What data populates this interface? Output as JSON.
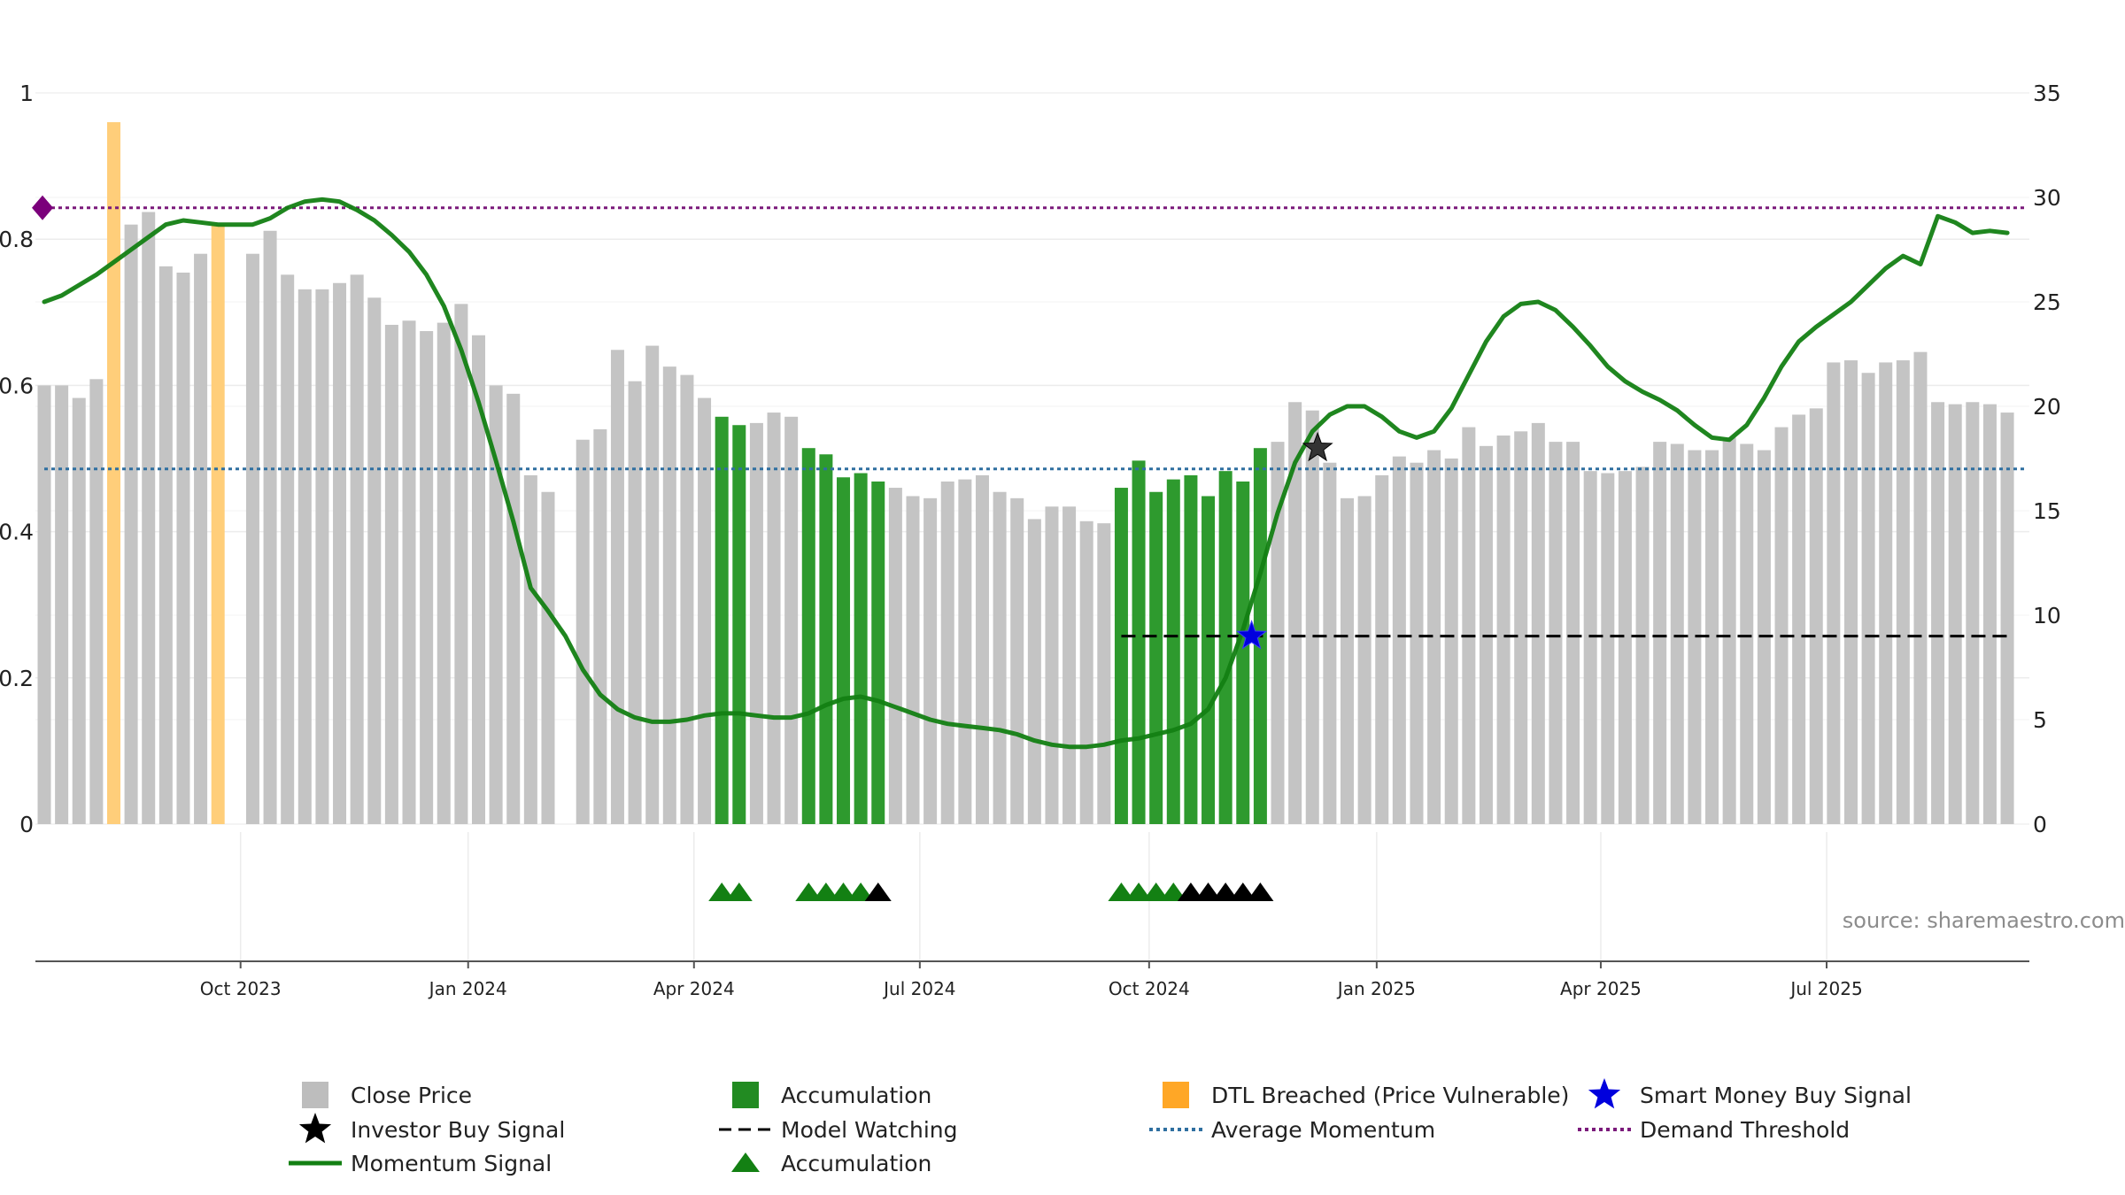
{
  "chart_data": {
    "type": "bar",
    "y_left_ticks": [
      "0",
      "0.2",
      "0.4",
      "0.6",
      "0.8",
      "1"
    ],
    "y_left_range": [
      0,
      1
    ],
    "y_right_ticks": [
      "0",
      "5",
      "10",
      "15",
      "20",
      "25",
      "30",
      "35"
    ],
    "y_right_range": [
      0,
      35
    ],
    "x_ticks": [
      {
        "label": "Oct 2023",
        "week": 11.3
      },
      {
        "label": "Jan 2024",
        "week": 24.4
      },
      {
        "label": "Apr 2024",
        "week": 37.4
      },
      {
        "label": "Jul 2024",
        "week": 50.4
      },
      {
        "label": "Oct 2024",
        "week": 63.6
      },
      {
        "label": "Jan 2025",
        "week": 76.7
      },
      {
        "label": "Apr 2025",
        "week": 89.6
      },
      {
        "label": "Jul 2025",
        "week": 102.6
      }
    ],
    "close_price": [
      21.0,
      21.0,
      20.4,
      21.3,
      34.0,
      28.7,
      29.3,
      26.7,
      26.4,
      27.3,
      29.5,
      null,
      27.3,
      28.4,
      26.3,
      25.6,
      25.6,
      25.9,
      26.3,
      25.2,
      23.9,
      24.1,
      23.6,
      24.0,
      24.9,
      23.4,
      21.0,
      20.6,
      16.7,
      15.9,
      null,
      18.4,
      18.9,
      22.7,
      21.2,
      22.9,
      21.9,
      21.5,
      20.4,
      19.5,
      19.1,
      19.2,
      19.7,
      19.5,
      18.0,
      17.7,
      16.6,
      16.8,
      16.4,
      16.1,
      15.7,
      15.6,
      16.4,
      16.5,
      16.7,
      15.9,
      15.6,
      14.6,
      15.2,
      15.2,
      14.5,
      14.4,
      16.1,
      17.4,
      15.9,
      16.5,
      16.7,
      15.7,
      16.9,
      16.4,
      18.0,
      18.3,
      20.2,
      19.8,
      17.3,
      15.6,
      15.7,
      16.7,
      17.6,
      17.3,
      17.9,
      17.5,
      19.0,
      18.1,
      18.6,
      18.8,
      19.2,
      18.3,
      18.3,
      16.9,
      16.8,
      16.9,
      17.1,
      18.3,
      18.2,
      17.9,
      17.9,
      18.5,
      18.2,
      17.9,
      19.0,
      19.6,
      19.9,
      22.1,
      22.2,
      21.6,
      22.1,
      22.2,
      22.6,
      20.2,
      20.1,
      20.2,
      20.1,
      19.7
    ],
    "accumulation_bars": [
      39,
      40,
      44,
      45,
      46,
      47,
      48,
      62,
      63,
      64,
      65,
      66,
      67,
      68,
      69,
      70
    ],
    "dtl_breached_bars": [
      4,
      10
    ],
    "momentum_signal": [
      [
        0,
        25.0
      ],
      [
        1,
        25.3
      ],
      [
        2,
        25.8
      ],
      [
        3,
        26.3
      ],
      [
        4,
        26.9
      ],
      [
        5,
        27.5
      ],
      [
        6,
        28.1
      ],
      [
        7,
        28.7
      ],
      [
        8,
        28.9
      ],
      [
        9,
        28.8
      ],
      [
        10,
        28.7
      ],
      [
        11,
        28.7
      ],
      [
        12,
        28.7
      ],
      [
        13,
        29.0
      ],
      [
        14,
        29.5
      ],
      [
        15,
        29.8
      ],
      [
        16,
        29.9
      ],
      [
        17,
        29.8
      ],
      [
        18,
        29.4
      ],
      [
        19,
        28.9
      ],
      [
        20,
        28.2
      ],
      [
        21,
        27.4
      ],
      [
        22,
        26.3
      ],
      [
        23,
        24.8
      ],
      [
        24,
        22.7
      ],
      [
        25,
        20.2
      ],
      [
        26,
        17.4
      ],
      [
        27,
        14.5
      ],
      [
        28,
        11.3
      ],
      [
        29,
        10.2
      ],
      [
        30,
        9.0
      ],
      [
        31,
        7.4
      ],
      [
        32,
        6.2
      ],
      [
        33,
        5.5
      ],
      [
        34,
        5.1
      ],
      [
        35,
        4.9
      ],
      [
        36,
        4.9
      ],
      [
        37,
        5.0
      ],
      [
        38,
        5.2
      ],
      [
        39,
        5.3
      ],
      [
        40,
        5.3
      ],
      [
        41,
        5.2
      ],
      [
        42,
        5.1
      ],
      [
        43,
        5.1
      ],
      [
        44,
        5.3
      ],
      [
        45,
        5.7
      ],
      [
        46,
        6.0
      ],
      [
        47,
        6.1
      ],
      [
        48,
        5.9
      ],
      [
        49,
        5.6
      ],
      [
        50,
        5.3
      ],
      [
        51,
        5.0
      ],
      [
        52,
        4.8
      ],
      [
        53,
        4.7
      ],
      [
        54,
        4.6
      ],
      [
        55,
        4.5
      ],
      [
        56,
        4.3
      ],
      [
        57,
        4.0
      ],
      [
        58,
        3.8
      ],
      [
        59,
        3.7
      ],
      [
        60,
        3.7
      ],
      [
        61,
        3.8
      ],
      [
        62,
        4.0
      ],
      [
        63,
        4.1
      ],
      [
        64,
        4.3
      ],
      [
        65,
        4.5
      ],
      [
        66,
        4.8
      ],
      [
        67,
        5.5
      ],
      [
        68,
        7.0
      ],
      [
        69,
        9.3
      ],
      [
        70,
        12.0
      ],
      [
        71,
        14.9
      ],
      [
        72,
        17.3
      ],
      [
        73,
        18.8
      ],
      [
        74,
        19.6
      ],
      [
        75,
        20.0
      ],
      [
        76,
        20.0
      ],
      [
        77,
        19.5
      ],
      [
        78,
        18.8
      ],
      [
        79,
        18.5
      ],
      [
        80,
        18.8
      ],
      [
        81,
        19.9
      ],
      [
        82,
        21.5
      ],
      [
        83,
        23.1
      ],
      [
        84,
        24.3
      ],
      [
        85,
        24.9
      ],
      [
        86,
        25.0
      ],
      [
        87,
        24.6
      ],
      [
        88,
        23.8
      ],
      [
        89,
        22.9
      ],
      [
        90,
        21.9
      ],
      [
        91,
        21.2
      ],
      [
        92,
        20.7
      ],
      [
        93,
        20.3
      ],
      [
        94,
        19.8
      ],
      [
        95,
        19.1
      ],
      [
        96,
        18.5
      ],
      [
        97,
        18.4
      ],
      [
        98,
        19.1
      ],
      [
        99,
        20.4
      ],
      [
        100,
        21.9
      ],
      [
        101,
        23.1
      ],
      [
        102,
        23.8
      ],
      [
        103,
        24.4
      ],
      [
        104,
        25.0
      ],
      [
        105,
        25.8
      ],
      [
        106,
        26.6
      ],
      [
        107,
        27.2
      ],
      [
        108,
        26.8
      ],
      [
        109,
        29.1
      ],
      [
        110,
        28.8
      ],
      [
        111,
        28.3
      ],
      [
        112,
        28.4
      ],
      [
        113,
        28.3
      ]
    ],
    "demand_threshold": 29.5,
    "average_momentum": 17.0,
    "model_watching": {
      "start": 62,
      "end": 113,
      "value": 9.0
    },
    "investor_buy_signal": [
      {
        "week": 73.3,
        "value": 18.0
      }
    ],
    "smart_money_buy_signal": [
      {
        "week": 69.5,
        "value": 9.0
      }
    ],
    "accumulation_triangles_green": [
      39,
      40,
      44,
      45,
      46,
      47,
      62,
      63,
      64,
      65
    ],
    "accumulation_triangles_black": [
      48,
      66,
      67,
      68,
      69,
      70
    ],
    "source_text": "source: sharemaestro.com",
    "legend": [
      {
        "label": "Close Price",
        "kind": "square",
        "color": "#bdbdbd"
      },
      {
        "label": "Accumulation",
        "kind": "square",
        "color": "#228b22"
      },
      {
        "label": "DTL Breached (Price Vulnerable)",
        "kind": "square",
        "color": "#ffa726"
      },
      {
        "label": "Smart Money Buy Signal",
        "kind": "star",
        "color": "#0000dd"
      },
      {
        "label": "Investor Buy Signal",
        "kind": "star",
        "color": "#000000"
      },
      {
        "label": "Model Watching",
        "kind": "dash",
        "color": "#000000"
      },
      {
        "label": "Average Momentum",
        "kind": "dot",
        "color": "#2f6fa0"
      },
      {
        "label": "Demand Threshold",
        "kind": "dot",
        "color": "#7b1a7b"
      },
      {
        "label": "Momentum Signal",
        "kind": "line",
        "color": "#138013"
      },
      {
        "label": "Accumulation",
        "kind": "triangle",
        "color": "#138013"
      }
    ],
    "colors": {
      "close": "#c4c4c4",
      "accum": "#2e9a2e",
      "dtl": "#ffce7a",
      "momentum": "#138013",
      "threshold": "#7b1a7b",
      "average": "#2f6fa0"
    }
  }
}
